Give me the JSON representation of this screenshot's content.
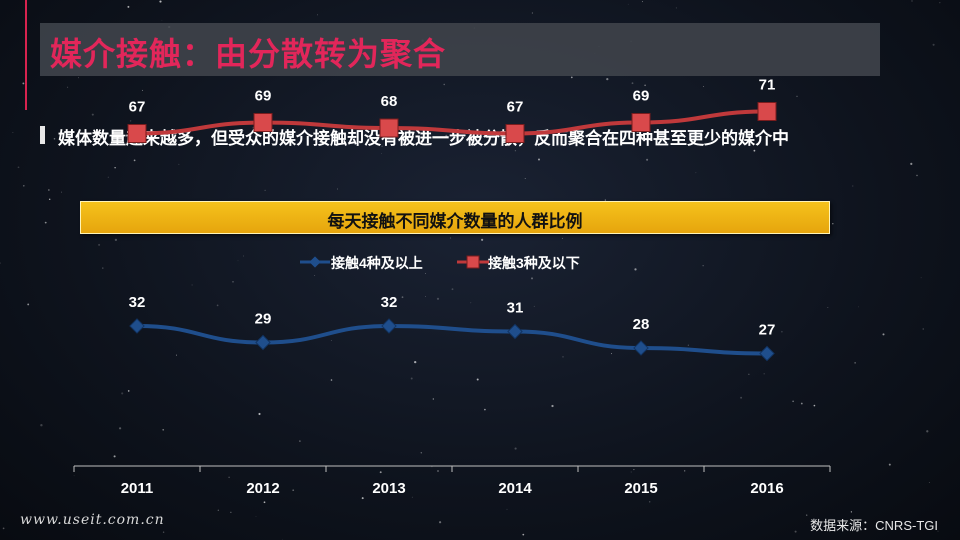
{
  "header": {
    "title": "媒介接触：由分散转为聚合",
    "subtitle": "媒体数量越来越多，但受众的媒介接触却没有被进一步被分散，反而聚合在四种甚至更少的媒介中"
  },
  "chart_data": {
    "type": "line",
    "title": "每天接触不同媒介数量的人群比例",
    "categories": [
      "2011",
      "2012",
      "2013",
      "2014",
      "2015",
      "2016"
    ],
    "series": [
      {
        "name": "接触4种及以上",
        "values": [
          32,
          29,
          32,
          31,
          28,
          27
        ],
        "color": "#1f4e8c"
      },
      {
        "name": "接触3种及以下",
        "values": [
          67,
          69,
          68,
          67,
          69,
          71
        ],
        "color": "#c0393b"
      }
    ],
    "legend_position": "top-center",
    "grid": false
  },
  "footer": {
    "watermark": "www.useit.com.cn",
    "source": "数据来源：CNRS-TGI"
  }
}
